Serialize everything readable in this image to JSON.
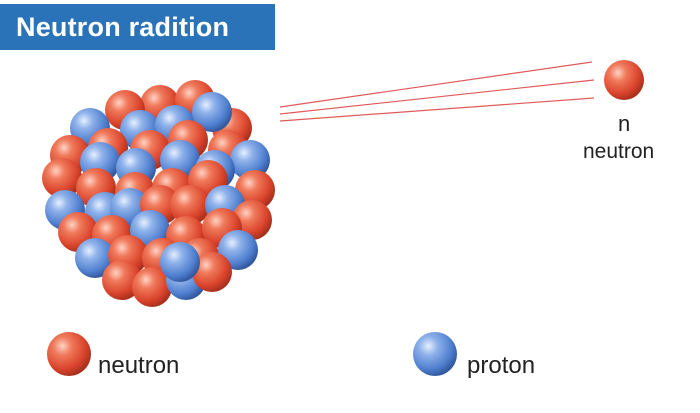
{
  "title": "Neutron radition",
  "emitted_particle": {
    "symbol": "n",
    "name": "neutron"
  },
  "legend": {
    "neutron_label": "neutron",
    "proton_label": "proton"
  },
  "colors": {
    "title_background": "#2a73b8",
    "title_text": "#ffffff",
    "neutron": "#e0533a",
    "proton": "#5f8fd6",
    "trail": "#e05a5a"
  }
}
